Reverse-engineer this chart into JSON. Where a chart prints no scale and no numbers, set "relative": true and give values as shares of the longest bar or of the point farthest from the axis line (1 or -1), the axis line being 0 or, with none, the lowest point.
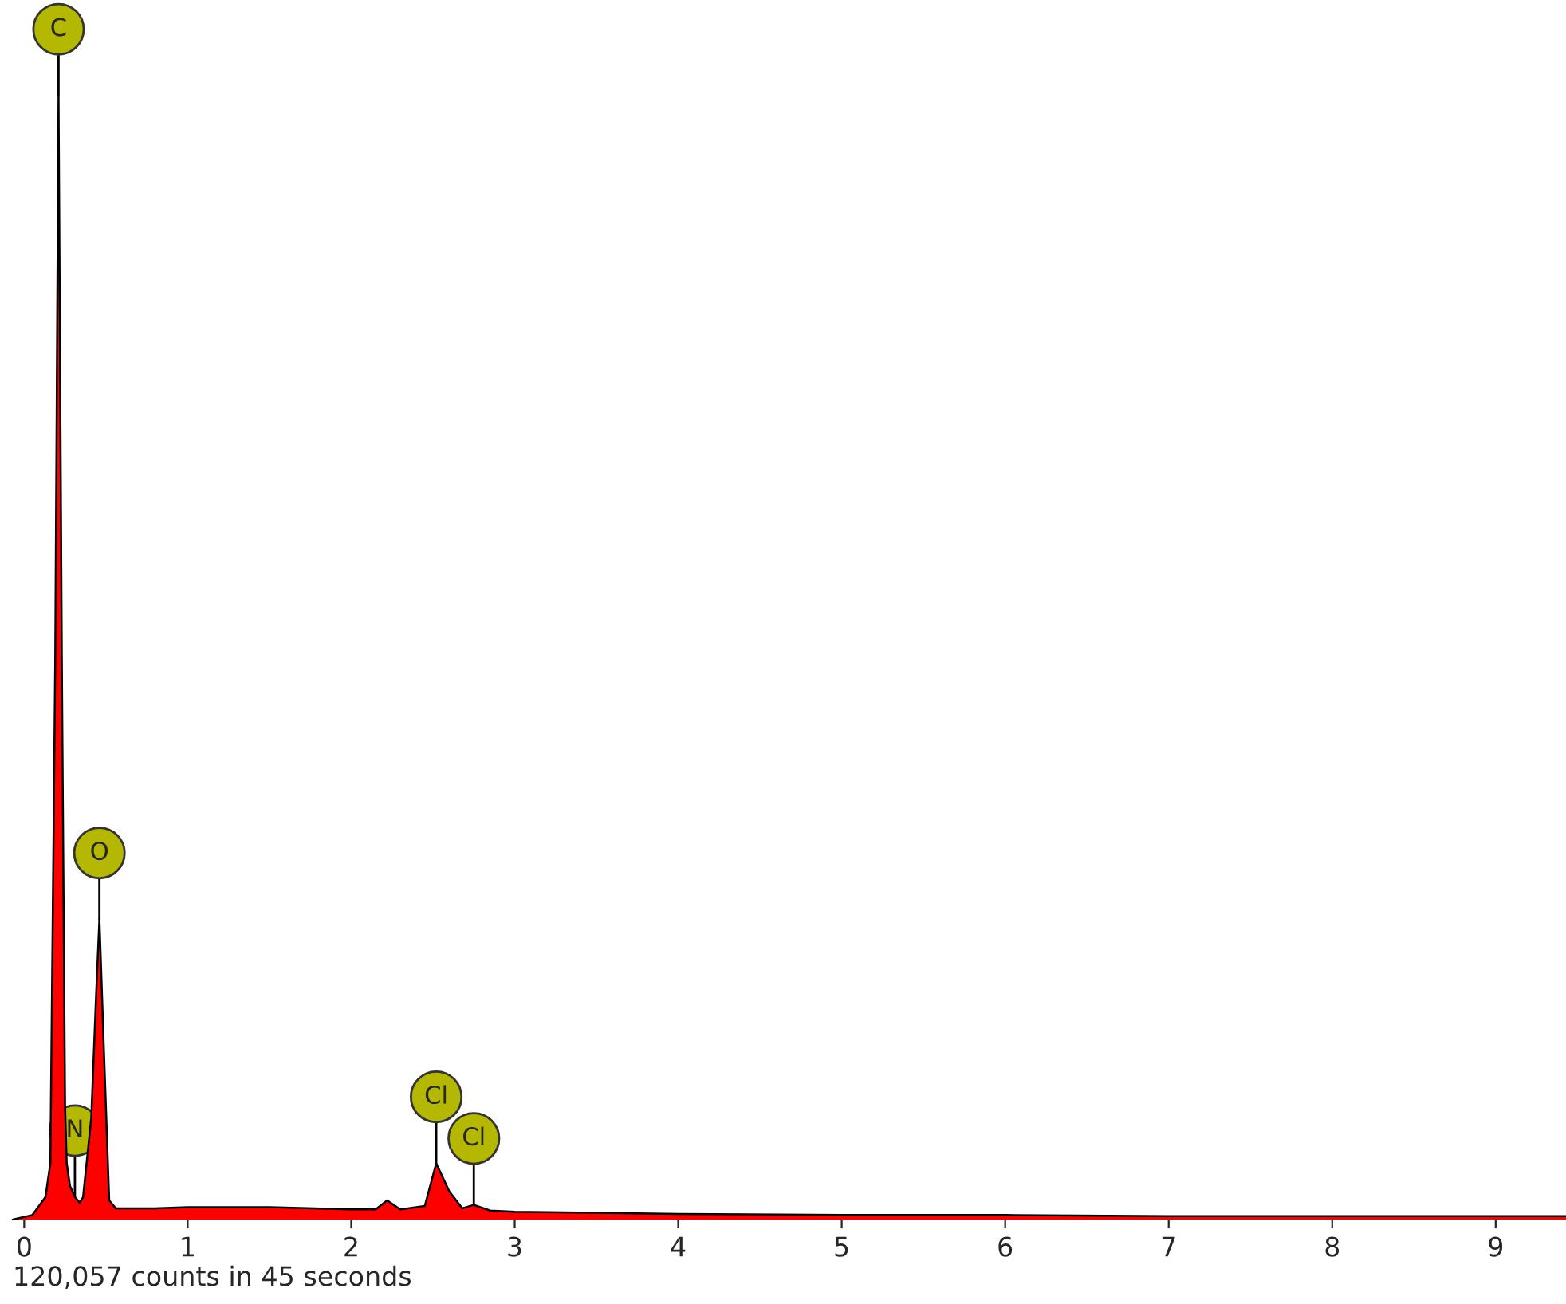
{
  "chart_data": {
    "type": "area",
    "relative": true,
    "xlim": [
      -0.07,
      9.43
    ],
    "xticks": [
      0,
      1,
      2,
      3,
      4,
      5,
      6,
      7,
      8,
      9
    ],
    "series": [
      {
        "color": "#ff0000",
        "x": [
          -0.07,
          0.05,
          0.1,
          0.13,
          0.16,
          0.19,
          0.21,
          0.23,
          0.25,
          0.26,
          0.28,
          0.31,
          0.34,
          0.36,
          0.41,
          0.44,
          0.46,
          0.49,
          0.52,
          0.56,
          0.8,
          1.0,
          1.5,
          2.0,
          2.15,
          2.22,
          2.3,
          2.45,
          2.52,
          2.6,
          2.68,
          2.75,
          2.85,
          3.0,
          4.0,
          5.0,
          6.0,
          7.0,
          8.0,
          9.0,
          9.43
        ],
        "values": [
          0,
          0.004,
          0.014,
          0.02,
          0.05,
          0.5,
          1.0,
          0.5,
          0.1,
          0.05,
          0.03,
          0.02,
          0.015,
          0.02,
          0.09,
          0.2,
          0.267,
          0.14,
          0.017,
          0.01,
          0.01,
          0.011,
          0.011,
          0.009,
          0.009,
          0.017,
          0.009,
          0.012,
          0.05,
          0.025,
          0.01,
          0.013,
          0.008,
          0.007,
          0.005,
          0.004,
          0.004,
          0.003,
          0.003,
          0.003,
          0.003
        ]
      }
    ],
    "annotations": [
      {
        "text": "C",
        "x": 0.21,
        "y": 1.0
      },
      {
        "text": "O",
        "x": 0.46,
        "y": 0.267
      },
      {
        "text": "N",
        "x": 0.31,
        "y": 0.02
      },
      {
        "text": "Cl",
        "x": 2.52,
        "y": 0.05
      },
      {
        "text": "Cl",
        "x": 2.75,
        "y": 0.013
      },
      "120,057 counts in 45 seconds"
    ]
  }
}
